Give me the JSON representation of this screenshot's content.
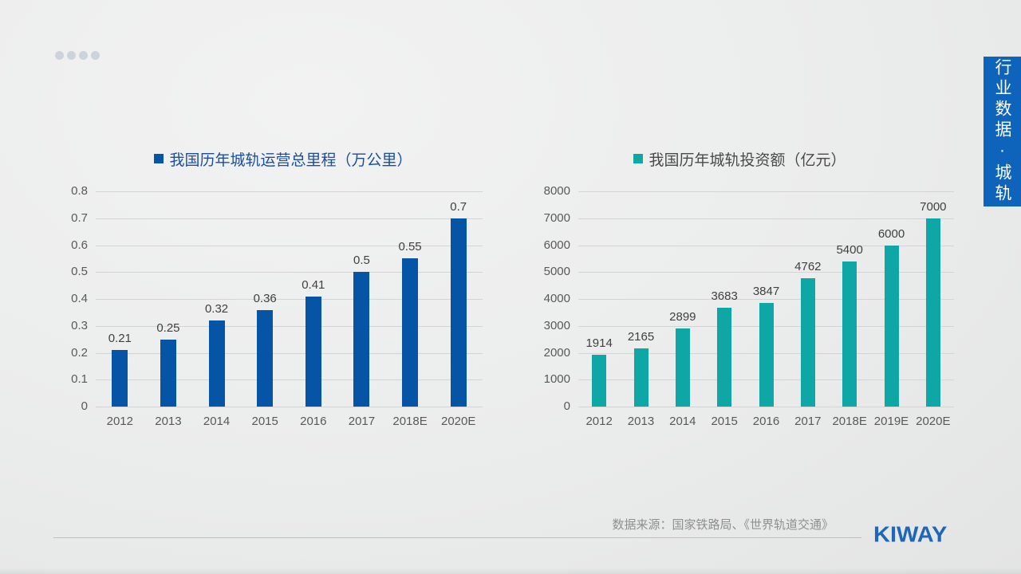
{
  "slide": {
    "decor_dots_count": 4,
    "side_tab": {
      "label": "行业数据·城轨",
      "bg_color": "#0e63ba",
      "text_color": "#ffffff"
    },
    "source_note": "数据来源：国家铁路局、《世界轨道交通》",
    "logo_text": "KIWAY",
    "logo_color": "#1e67b6"
  },
  "chart_data": [
    {
      "type": "bar",
      "title": "我国历年城轨运营总里程（万公里）",
      "categories": [
        "2012",
        "2013",
        "2014",
        "2015",
        "2016",
        "2017",
        "2018E",
        "2020E"
      ],
      "values": [
        0.21,
        0.25,
        0.32,
        0.36,
        0.41,
        0.5,
        0.55,
        0.7
      ],
      "ylim": [
        0,
        0.8
      ],
      "ytick_step": 0.1,
      "bar_color": "#0554a5",
      "title_color": "#1c4fa0",
      "grid": true,
      "data_labels": true,
      "legend_position": "top"
    },
    {
      "type": "bar",
      "title": "我国历年城轨投资额（亿元）",
      "categories": [
        "2012",
        "2013",
        "2014",
        "2015",
        "2016",
        "2017",
        "2018E",
        "2019E",
        "2020E"
      ],
      "values": [
        1914,
        2165,
        2899,
        3683,
        3847,
        4762,
        5400,
        6000,
        7000
      ],
      "ylim": [
        0,
        8000
      ],
      "ytick_step": 1000,
      "bar_color": "#0fa6a6",
      "title_color": "#4a4a4a",
      "grid": true,
      "data_labels": true,
      "legend_position": "top"
    }
  ]
}
